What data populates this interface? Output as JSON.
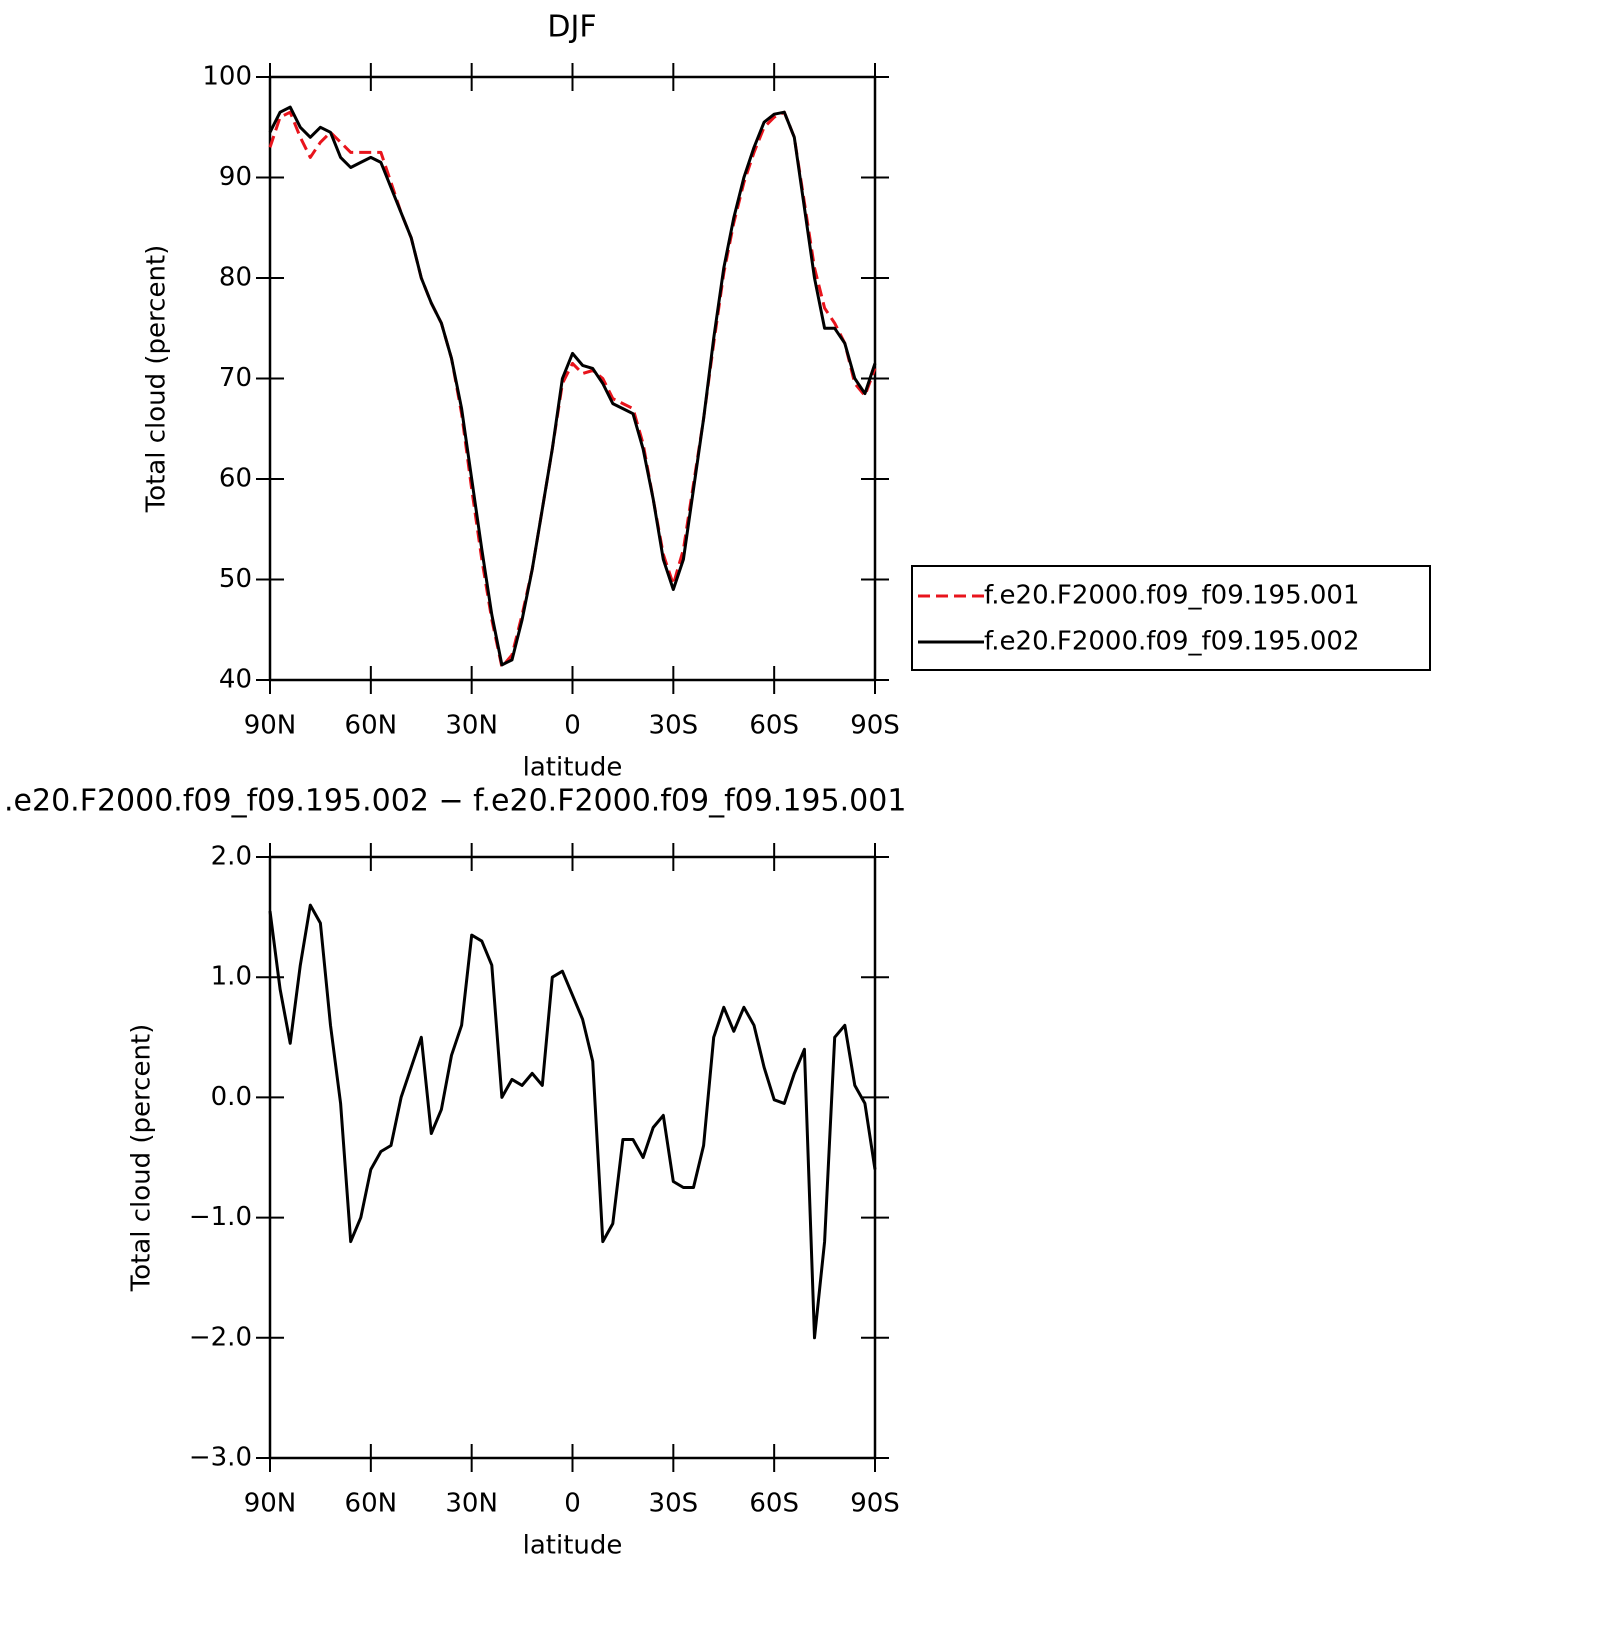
{
  "chart_data": [
    {
      "type": "line",
      "title": "DJF",
      "xlabel": "latitude",
      "ylabel": "Total cloud (percent)",
      "x": [
        90,
        87,
        84,
        81,
        78,
        75,
        72,
        69,
        66,
        63,
        60,
        57,
        54,
        51,
        48,
        45,
        42,
        39,
        36,
        33,
        30,
        27,
        24,
        21,
        18,
        15,
        12,
        9,
        6,
        3,
        0,
        -3,
        -6,
        -9,
        -12,
        -15,
        -18,
        -21,
        -24,
        -27,
        -30,
        -33,
        -36,
        -39,
        -42,
        -45,
        -48,
        -51,
        -54,
        -57,
        -60,
        -63,
        -66,
        -69,
        -72,
        -75,
        -78,
        -81,
        -84,
        -87,
        -90
      ],
      "xlim": [
        90,
        -90
      ],
      "xticks": [
        {
          "value": 90,
          "label": "90N"
        },
        {
          "value": 60,
          "label": "60N"
        },
        {
          "value": 30,
          "label": "30N"
        },
        0,
        {
          "value": -30,
          "label": "30S"
        },
        {
          "value": -60,
          "label": "60S"
        },
        {
          "value": -90,
          "label": "90S"
        }
      ],
      "ylim": [
        40,
        100
      ],
      "yticks": [
        40,
        50,
        60,
        70,
        80,
        90,
        100
      ],
      "legend": "outside-right",
      "series": [
        {
          "name": "f.e20.F2000.f09_f09.195.001",
          "color": "#e8141c",
          "dash": true,
          "values": [
            93,
            96,
            96.5,
            94,
            92,
            93.5,
            94.5,
            93.5,
            92.5,
            92.5,
            92.5,
            92.5,
            89.5,
            86.5,
            84,
            80,
            77.5,
            75.5,
            72,
            66.5,
            59,
            52,
            46,
            41.3,
            42.5,
            46.5,
            51,
            57,
            63,
            69.5,
            71.5,
            70.5,
            70.8,
            70,
            68,
            67.5,
            67,
            63.5,
            58,
            52.5,
            49.5,
            53,
            59.5,
            66,
            73.5,
            80.5,
            85.5,
            89.5,
            92.5,
            95,
            96,
            96.5,
            94,
            87.5,
            81,
            77,
            75.5,
            73.5,
            69.5,
            68.3,
            71
          ]
        },
        {
          "name": "f.e20.F2000.f09_f09.195.002",
          "color": "#000000",
          "dash": false,
          "values": [
            94.5,
            96.5,
            97,
            95,
            94,
            95,
            94.5,
            92,
            91,
            91.5,
            92,
            91.5,
            89,
            86.5,
            84,
            80,
            77.5,
            75.5,
            72,
            67,
            60,
            53,
            46.5,
            41.5,
            42,
            46,
            51,
            57,
            63,
            70,
            72.5,
            71.3,
            71,
            69.5,
            67.5,
            67,
            66.5,
            63,
            58,
            52,
            49,
            52,
            59,
            66,
            74,
            81,
            86,
            90,
            93,
            95.5,
            96.3,
            96.5,
            94,
            87,
            80,
            75,
            75,
            73.5,
            70,
            68.5,
            71.5
          ]
        }
      ]
    },
    {
      "type": "line",
      "title": ".e20.F2000.f09_f09.195.002 − f.e20.F2000.f09_f09.195.001",
      "xlabel": "latitude",
      "ylabel": "Total cloud (percent)",
      "x": [
        90,
        87,
        84,
        81,
        78,
        75,
        72,
        69,
        66,
        63,
        60,
        57,
        54,
        51,
        48,
        45,
        42,
        39,
        36,
        33,
        30,
        27,
        24,
        21,
        18,
        15,
        12,
        9,
        6,
        3,
        0,
        -3,
        -6,
        -9,
        -12,
        -15,
        -18,
        -21,
        -24,
        -27,
        -30,
        -33,
        -36,
        -39,
        -42,
        -45,
        -48,
        -51,
        -54,
        -57,
        -60,
        -63,
        -66,
        -69,
        -72,
        -75,
        -78,
        -81,
        -84,
        -87,
        -90
      ],
      "xlim": [
        90,
        -90
      ],
      "xticks": [
        {
          "value": 90,
          "label": "90N"
        },
        {
          "value": 60,
          "label": "60N"
        },
        {
          "value": 30,
          "label": "30N"
        },
        0,
        {
          "value": -30,
          "label": "30S"
        },
        {
          "value": -60,
          "label": "60S"
        },
        {
          "value": -90,
          "label": "90S"
        }
      ],
      "ylim": [
        -3,
        2
      ],
      "yticks": [
        {
          "value": -3,
          "label": "−3.0"
        },
        {
          "value": -2,
          "label": "−2.0"
        },
        {
          "value": -1,
          "label": "−1.0"
        },
        {
          "value": 0,
          "label": "0.0"
        },
        {
          "value": 1,
          "label": "1.0"
        },
        {
          "value": 2,
          "label": "2.0"
        }
      ],
      "series": [
        {
          "color": "#000000",
          "dash": false,
          "values": [
            1.55,
            0.9,
            0.45,
            1.1,
            1.6,
            1.45,
            0.6,
            -0.05,
            -1.2,
            -1.0,
            -0.6,
            -0.45,
            -0.4,
            0.0,
            0.25,
            0.5,
            -0.3,
            -0.1,
            0.35,
            0.6,
            1.35,
            1.3,
            1.1,
            0.0,
            0.15,
            0.1,
            0.2,
            0.1,
            1.0,
            1.05,
            0.85,
            0.65,
            0.3,
            -1.2,
            -1.05,
            -0.35,
            -0.35,
            -0.5,
            -0.25,
            -0.15,
            -0.7,
            -0.75,
            -0.75,
            -0.4,
            0.5,
            0.75,
            0.55,
            0.75,
            0.6,
            0.25,
            -0.02,
            -0.05,
            0.2,
            0.4,
            -2.0,
            -1.2,
            0.5,
            0.6,
            0.1,
            -0.05,
            -0.6
          ]
        }
      ]
    }
  ]
}
